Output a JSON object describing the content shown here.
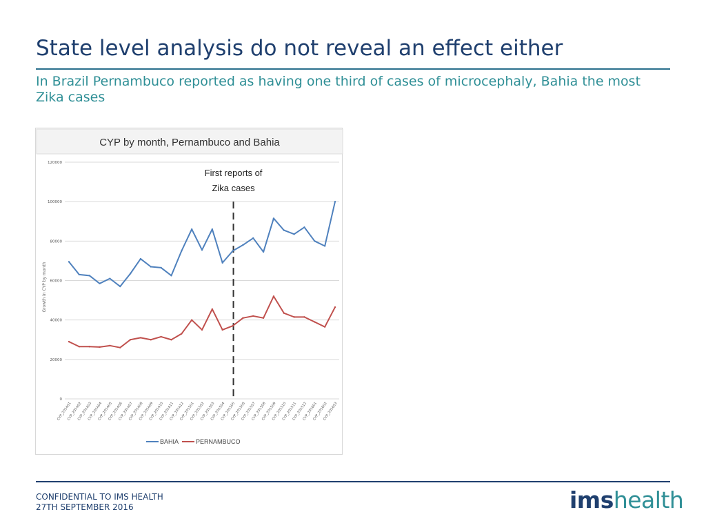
{
  "slide": {
    "title": "State level analysis do not reveal an effect either",
    "subtitle": "In Brazil Pernambuco reported as having one third of cases of microcephaly, Bahia the most Zika cases"
  },
  "footer": {
    "line1": "CONFIDENTIAL TO IMS HEALTH",
    "line2": "27TH SEPTEMBER 2016"
  },
  "logo": {
    "part1": "ims",
    "part2": "health"
  },
  "colors": {
    "bahia": "#4f81bd",
    "pernambuco": "#c0504d",
    "title": "#1f3f6e",
    "accent": "#2f8f96"
  },
  "chart_data": {
    "type": "line",
    "title": "CYP by month, Pernambuco and Bahia",
    "xlabel": "",
    "ylabel": "Growth in CYP by month",
    "ylim": [
      0,
      120000
    ],
    "yticks": [
      0,
      20000,
      40000,
      60000,
      80000,
      100000,
      120000
    ],
    "grid": true,
    "legend": "bottom",
    "categories": [
      "CYP_201401",
      "CYP_201402",
      "CYP_201403",
      "CYP_201404",
      "CYP_201405",
      "CYP_201406",
      "CYP_201407",
      "CYP_201408",
      "CYP_201409",
      "CYP_201410",
      "CYP_201411",
      "CYP_201412",
      "CYP_201501",
      "CYP_201502",
      "CYP_201503",
      "CYP_201504",
      "CYP_201505",
      "CYP_201506",
      "CYP_201507",
      "CYP_201508",
      "CYP_201509",
      "CYP_201510",
      "CYP_201511",
      "CYP_201512",
      "CYP_201601",
      "CYP_201602",
      "CYP_201603"
    ],
    "series": [
      {
        "name": "BAHIA",
        "color": "#4f81bd",
        "values": [
          69500,
          63000,
          62500,
          58500,
          61000,
          57000,
          63500,
          71000,
          67000,
          66500,
          62500,
          75000,
          86000,
          75500,
          86000,
          69000,
          75000,
          78000,
          81500,
          74500,
          91500,
          85500,
          83500,
          87000,
          80000,
          77500,
          100000
        ]
      },
      {
        "name": "PERNAMBUCO",
        "color": "#c0504d",
        "values": [
          29000,
          26500,
          26500,
          26300,
          27000,
          26000,
          30000,
          31000,
          30000,
          31500,
          30000,
          33000,
          40000,
          35000,
          45500,
          35000,
          37000,
          41000,
          42000,
          41000,
          52000,
          43500,
          41500,
          41500,
          39000,
          36500,
          46500
        ]
      }
    ],
    "annotation": {
      "text_line1": "First reports of",
      "text_line2": "Zika cases",
      "category": "CYP_201505"
    }
  }
}
